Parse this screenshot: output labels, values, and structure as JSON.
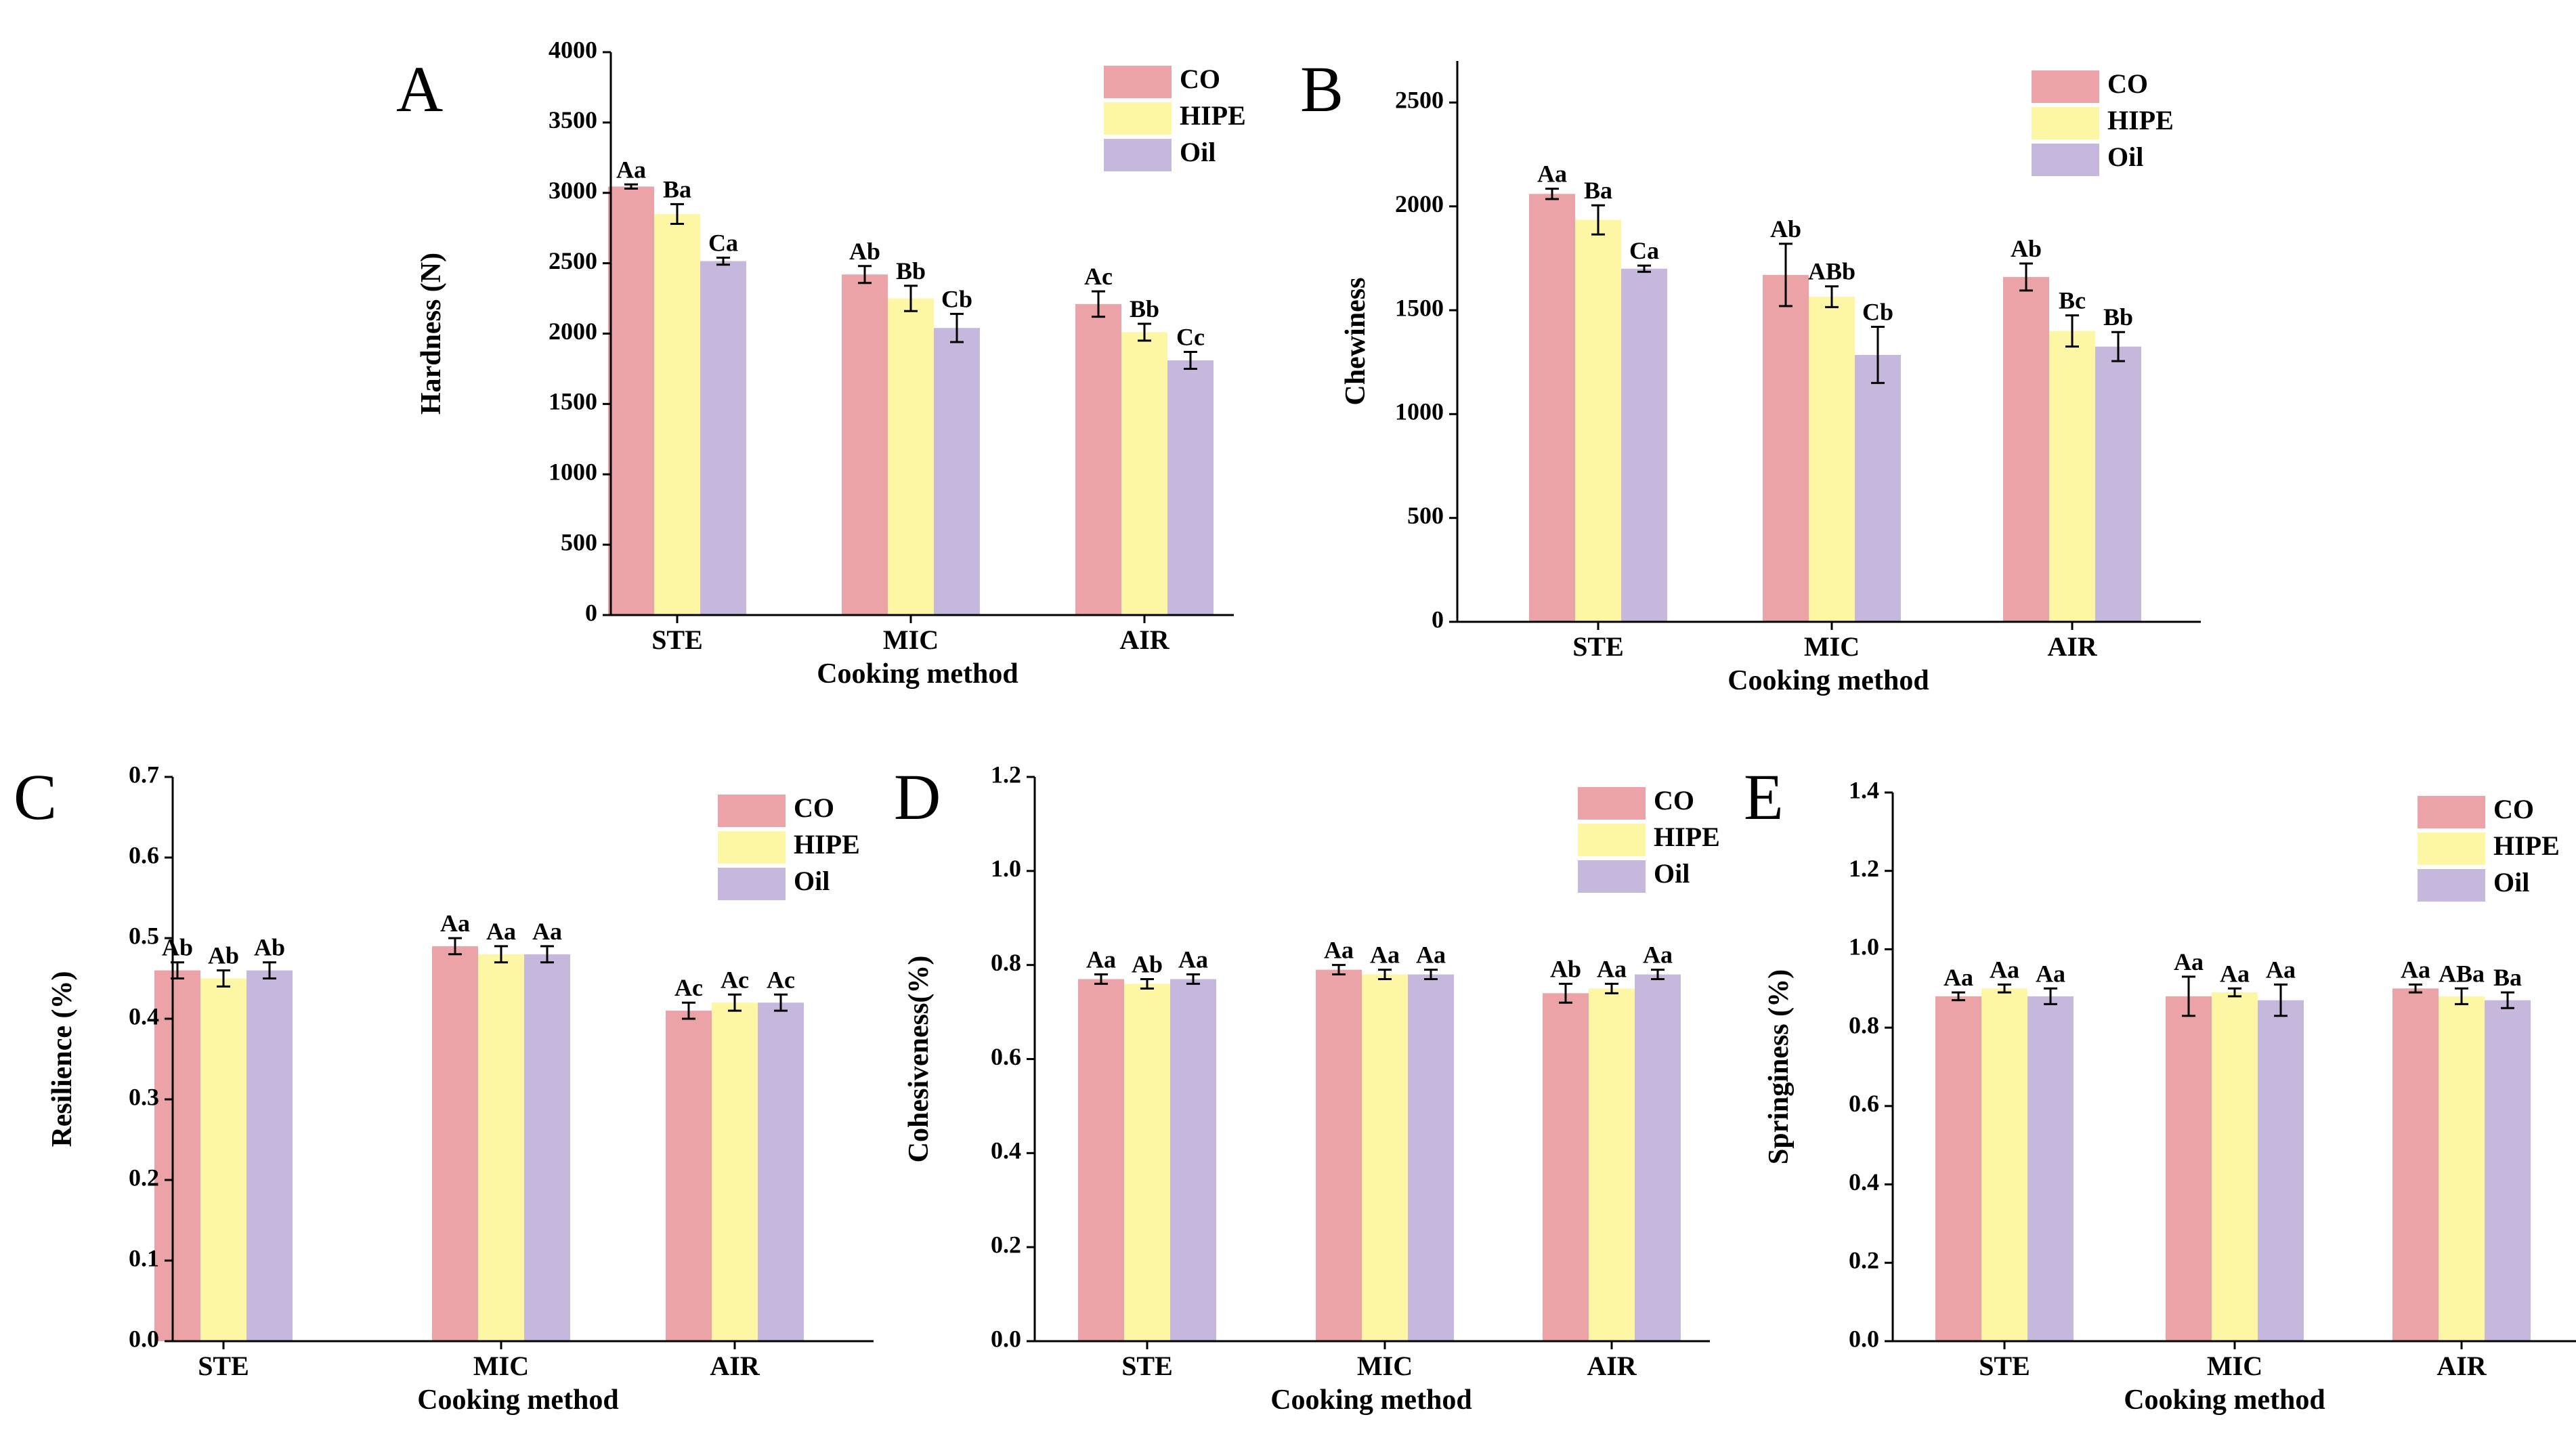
{
  "figure": {
    "label": "Texture properties by cooking method"
  },
  "colors": {
    "CO": "#eba3a8",
    "HIPE": "#fdf6a4",
    "Oil": "#c6b8dd",
    "axis": "#000000"
  },
  "chart_data": [
    {
      "panel": "A",
      "type": "bar",
      "categories": [
        "STE",
        "MIC",
        "AIR"
      ],
      "xlabel": "Cooking method",
      "ylabel": "Hardness (N)",
      "ylim": [
        0,
        4000
      ],
      "ticks": [
        "0",
        "500",
        "1000",
        "1500",
        "2000",
        "2500",
        "3000",
        "3500",
        "4000"
      ],
      "legend": [
        "CO",
        "HIPE",
        "Oil"
      ],
      "legend_position": "top-right",
      "series": [
        {
          "name": "CO",
          "values": [
            3045,
            2420,
            2210
          ],
          "errors": [
            15,
            60,
            90
          ],
          "labels": [
            "Aa",
            "Ab",
            "Ac"
          ]
        },
        {
          "name": "HIPE",
          "values": [
            2850,
            2250,
            2010
          ],
          "errors": [
            70,
            90,
            60
          ],
          "labels": [
            "Ba",
            "Bb",
            "Bb"
          ]
        },
        {
          "name": "Oil",
          "values": [
            2515,
            2040,
            1810
          ],
          "errors": [
            25,
            100,
            60
          ],
          "labels": [
            "Ca",
            "Cb",
            "Cc"
          ]
        }
      ]
    },
    {
      "panel": "B",
      "type": "bar",
      "categories": [
        "STE",
        "MIC",
        "AIR"
      ],
      "xlabel": "Cooking method",
      "ylabel": "Chewiness",
      "ylim": [
        0,
        2700
      ],
      "ticks": [
        "0",
        "500",
        "1000",
        "1500",
        "2000",
        "2500"
      ],
      "legend": [
        "CO",
        "HIPE",
        "Oil"
      ],
      "legend_position": "top-right",
      "series": [
        {
          "name": "CO",
          "values": [
            2060,
            1670,
            1660
          ],
          "errors": [
            25,
            150,
            65
          ],
          "labels": [
            "Aa",
            "Ab",
            "Ab"
          ]
        },
        {
          "name": "HIPE",
          "values": [
            1935,
            1565,
            1400
          ],
          "errors": [
            70,
            50,
            75
          ],
          "labels": [
            "Ba",
            "ABb",
            "Bc"
          ]
        },
        {
          "name": "Oil",
          "values": [
            1700,
            1285,
            1325
          ],
          "errors": [
            15,
            135,
            70
          ],
          "labels": [
            "Ca",
            "Cb",
            "Bb"
          ]
        }
      ]
    },
    {
      "panel": "C",
      "type": "bar",
      "categories": [
        "STE",
        "MIC",
        "AIR"
      ],
      "xlabel": "Cooking method",
      "ylabel": "Resilience (%)",
      "ylim": [
        0,
        0.7
      ],
      "ticks": [
        "0.0",
        "0.1",
        "0.2",
        "0.3",
        "0.4",
        "0.5",
        "0.6",
        "0.7"
      ],
      "legend": [
        "CO",
        "HIPE",
        "Oil"
      ],
      "legend_position": "top-right",
      "series": [
        {
          "name": "CO",
          "values": [
            0.46,
            0.49,
            0.41
          ],
          "errors": [
            0.01,
            0.01,
            0.01
          ],
          "labels": [
            "Ab",
            "Aa",
            "Ac"
          ]
        },
        {
          "name": "HIPE",
          "values": [
            0.45,
            0.48,
            0.42
          ],
          "errors": [
            0.01,
            0.01,
            0.01
          ],
          "labels": [
            "Ab",
            "Aa",
            "Ac"
          ]
        },
        {
          "name": "Oil",
          "values": [
            0.46,
            0.48,
            0.42
          ],
          "errors": [
            0.01,
            0.01,
            0.01
          ],
          "labels": [
            "Ab",
            "Aa",
            "Ac"
          ]
        }
      ]
    },
    {
      "panel": "D",
      "type": "bar",
      "categories": [
        "STE",
        "MIC",
        "AIR"
      ],
      "xlabel": "Cooking method",
      "ylabel": "Cohesiveness(%)",
      "ylim": [
        0,
        1.2
      ],
      "ticks": [
        "0.0",
        "0.2",
        "0.4",
        "0.6",
        "0.8",
        "1.0",
        "1.2"
      ],
      "legend": [
        "CO",
        "HIPE",
        "Oil"
      ],
      "legend_position": "top-right",
      "series": [
        {
          "name": "CO",
          "values": [
            0.77,
            0.79,
            0.74
          ],
          "errors": [
            0.01,
            0.01,
            0.02
          ],
          "labels": [
            "Aa",
            "Aa",
            "Ab"
          ]
        },
        {
          "name": "HIPE",
          "values": [
            0.76,
            0.78,
            0.75
          ],
          "errors": [
            0.01,
            0.01,
            0.01
          ],
          "labels": [
            "Ab",
            "Aa",
            "Aa"
          ]
        },
        {
          "name": "Oil",
          "values": [
            0.77,
            0.78,
            0.78
          ],
          "errors": [
            0.01,
            0.01,
            0.01
          ],
          "labels": [
            "Aa",
            "Aa",
            "Aa"
          ]
        }
      ]
    },
    {
      "panel": "E",
      "type": "bar",
      "categories": [
        "STE",
        "MIC",
        "AIR"
      ],
      "xlabel": "Cooking method",
      "ylabel": "Springiness (%)",
      "ylim": [
        0,
        1.4
      ],
      "ticks": [
        "0.0",
        "0.2",
        "0.4",
        "0.6",
        "0.8",
        "1.0",
        "1.2",
        "1.4"
      ],
      "legend": [
        "CO",
        "HIPE",
        "Oil"
      ],
      "legend_position": "top-right",
      "series": [
        {
          "name": "CO",
          "values": [
            0.88,
            0.88,
            0.9
          ],
          "errors": [
            0.01,
            0.05,
            0.01
          ],
          "labels": [
            "Aa",
            "Aa",
            "Aa"
          ]
        },
        {
          "name": "HIPE",
          "values": [
            0.9,
            0.89,
            0.88
          ],
          "errors": [
            0.01,
            0.01,
            0.02
          ],
          "labels": [
            "Aa",
            "Aa",
            "ABa"
          ]
        },
        {
          "name": "Oil",
          "values": [
            0.88,
            0.87,
            0.87
          ],
          "errors": [
            0.02,
            0.04,
            0.02
          ],
          "labels": [
            "Aa",
            "Aa",
            "Ba"
          ]
        }
      ]
    }
  ]
}
